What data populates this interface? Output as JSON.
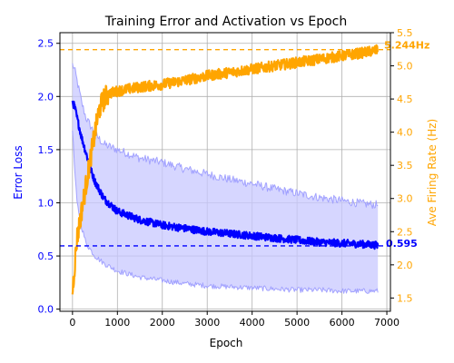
{
  "chart_data": {
    "type": "line",
    "title": "Training Error and Activation vs Epoch",
    "xlabel": "Epoch",
    "ylabel_left": "Error Loss",
    "ylabel_right": "Ave Firing Rate (Hz)",
    "xlim": [
      -280,
      7080
    ],
    "ylim_left": [
      -0.02,
      2.6
    ],
    "ylim_right": [
      1.3,
      5.5
    ],
    "xticks": [
      0,
      1000,
      2000,
      3000,
      4000,
      5000,
      6000,
      7000
    ],
    "yticks_left": [
      0.0,
      0.5,
      1.0,
      1.5,
      2.0,
      2.5
    ],
    "yticks_right": [
      1.5,
      2.0,
      2.5,
      3.0,
      3.5,
      4.0,
      4.5,
      5.0,
      5.5
    ],
    "ytick_labels_left": [
      "0.0",
      "0.5",
      "1.0",
      "1.5",
      "2.0",
      "2.5"
    ],
    "ytick_labels_right": [
      "1.5",
      "2.0",
      "2.5",
      "3.0",
      "3.5",
      "4.0",
      "4.5",
      "5.0",
      "5.5"
    ],
    "grid": true,
    "colors": {
      "error": "#0000ff",
      "band": "#c8c8ff",
      "firing": "#ffa500",
      "text": "#000000"
    },
    "series": [
      {
        "axis": "left",
        "x": [
          0,
          50,
          100,
          200,
          300,
          400,
          500,
          700,
          1000,
          1500,
          2000,
          2500,
          3000,
          3500,
          4000,
          4500,
          5000,
          5500,
          6000,
          6500,
          6800
        ],
        "values": [
          1.95,
          1.9,
          1.8,
          1.62,
          1.47,
          1.32,
          1.2,
          1.04,
          0.92,
          0.84,
          0.79,
          0.76,
          0.73,
          0.71,
          0.69,
          0.67,
          0.65,
          0.63,
          0.62,
          0.61,
          0.6
        ]
      },
      {
        "axis": "left",
        "x": [
          0,
          50,
          100,
          200,
          300,
          500,
          700,
          1000,
          1500,
          2000,
          2500,
          3000,
          3500,
          4000,
          4500,
          5000,
          5500,
          6000,
          6500,
          6800
        ],
        "values": [
          2.3,
          2.25,
          2.15,
          1.95,
          1.8,
          1.65,
          1.55,
          1.5,
          1.42,
          1.38,
          1.32,
          1.27,
          1.22,
          1.18,
          1.13,
          1.09,
          1.05,
          1.02,
          0.99,
          0.98
        ]
      },
      {
        "axis": "left",
        "x": [
          0,
          50,
          100,
          200,
          300,
          500,
          700,
          1000,
          1500,
          2000,
          2500,
          3000,
          3500,
          4000,
          4500,
          5000,
          5500,
          6000,
          6500,
          6800
        ],
        "values": [
          1.7,
          1.3,
          1.0,
          0.78,
          0.62,
          0.5,
          0.43,
          0.36,
          0.3,
          0.27,
          0.24,
          0.22,
          0.21,
          0.2,
          0.19,
          0.18,
          0.18,
          0.17,
          0.17,
          0.17
        ]
      },
      {
        "axis": "right",
        "x": [
          0,
          50,
          100,
          200,
          300,
          400,
          500,
          600,
          700,
          800,
          1000,
          1500,
          2000,
          2500,
          3000,
          3500,
          4000,
          4500,
          5000,
          5500,
          6000,
          6500,
          6800
        ],
        "values": [
          1.6,
          2.0,
          2.4,
          2.8,
          3.2,
          3.6,
          4.0,
          4.35,
          4.5,
          4.58,
          4.62,
          4.68,
          4.72,
          4.78,
          4.85,
          4.9,
          4.95,
          5.0,
          5.05,
          5.1,
          5.15,
          5.2,
          5.24
        ]
      }
    ],
    "reference_lines": [
      {
        "axis": "right",
        "value": 5.244,
        "label": "5.244Hz"
      },
      {
        "axis": "left",
        "value": 0.595,
        "label": "0.595"
      }
    ]
  }
}
